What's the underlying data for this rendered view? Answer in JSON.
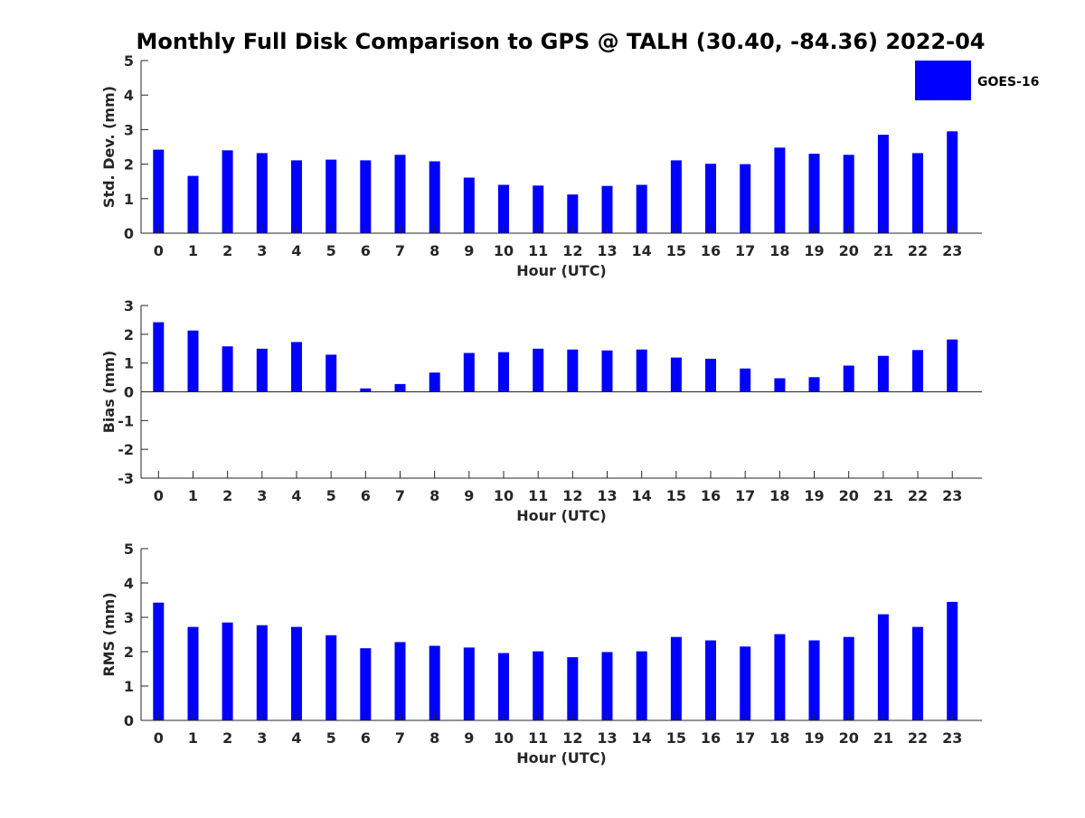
{
  "title": "Monthly Full Disk Comparison to GPS @ TALH (30.40, -84.36) 2022-04",
  "legend": {
    "label": "GOES-16",
    "color": "#0000ff"
  },
  "chart_data": [
    {
      "type": "bar",
      "xlabel": "Hour (UTC)",
      "ylabel": "Std. Dev. (mm)",
      "ylim": [
        0,
        5
      ],
      "yticks": [
        0,
        1,
        2,
        3,
        4,
        5
      ],
      "categories": [
        "0",
        "1",
        "2",
        "3",
        "4",
        "5",
        "6",
        "7",
        "8",
        "9",
        "10",
        "11",
        "12",
        "13",
        "14",
        "15",
        "16",
        "17",
        "18",
        "19",
        "20",
        "21",
        "22",
        "23"
      ],
      "series": [
        {
          "name": "GOES-16",
          "color": "#0000ff",
          "values": [
            2.42,
            1.66,
            2.4,
            2.32,
            2.11,
            2.13,
            2.11,
            2.27,
            2.08,
            1.61,
            1.4,
            1.38,
            1.12,
            1.37,
            1.4,
            2.11,
            2.01,
            2.0,
            2.48,
            2.3,
            2.27,
            2.85,
            2.32,
            2.95
          ]
        }
      ]
    },
    {
      "type": "bar",
      "xlabel": "Hour (UTC)",
      "ylabel": "Bias (mm)",
      "ylim": [
        -3,
        3
      ],
      "yticks": [
        -3,
        -2,
        -1,
        0,
        1,
        2,
        3
      ],
      "zero_line": true,
      "categories": [
        "0",
        "1",
        "2",
        "3",
        "4",
        "5",
        "6",
        "7",
        "8",
        "9",
        "10",
        "11",
        "12",
        "13",
        "14",
        "15",
        "16",
        "17",
        "18",
        "19",
        "20",
        "21",
        "22",
        "23"
      ],
      "series": [
        {
          "name": "GOES-16",
          "color": "#0000ff",
          "values": [
            2.42,
            2.13,
            1.58,
            1.5,
            1.73,
            1.29,
            0.12,
            0.27,
            0.67,
            1.35,
            1.38,
            1.5,
            1.47,
            1.44,
            1.47,
            1.19,
            1.15,
            0.81,
            0.47,
            0.51,
            0.91,
            1.25,
            1.45,
            1.82
          ]
        }
      ]
    },
    {
      "type": "bar",
      "xlabel": "Hour (UTC)",
      "ylabel": "RMS (mm)",
      "ylim": [
        0,
        5
      ],
      "yticks": [
        0,
        1,
        2,
        3,
        4,
        5
      ],
      "categories": [
        "0",
        "1",
        "2",
        "3",
        "4",
        "5",
        "6",
        "7",
        "8",
        "9",
        "10",
        "11",
        "12",
        "13",
        "14",
        "15",
        "16",
        "17",
        "18",
        "19",
        "20",
        "21",
        "22",
        "23"
      ],
      "series": [
        {
          "name": "GOES-16",
          "color": "#0000ff",
          "values": [
            3.43,
            2.72,
            2.85,
            2.77,
            2.72,
            2.48,
            2.1,
            2.28,
            2.17,
            2.12,
            1.96,
            2.01,
            1.84,
            1.99,
            2.01,
            2.43,
            2.33,
            2.15,
            2.51,
            2.33,
            2.43,
            3.09,
            2.72,
            3.45
          ]
        }
      ]
    }
  ]
}
